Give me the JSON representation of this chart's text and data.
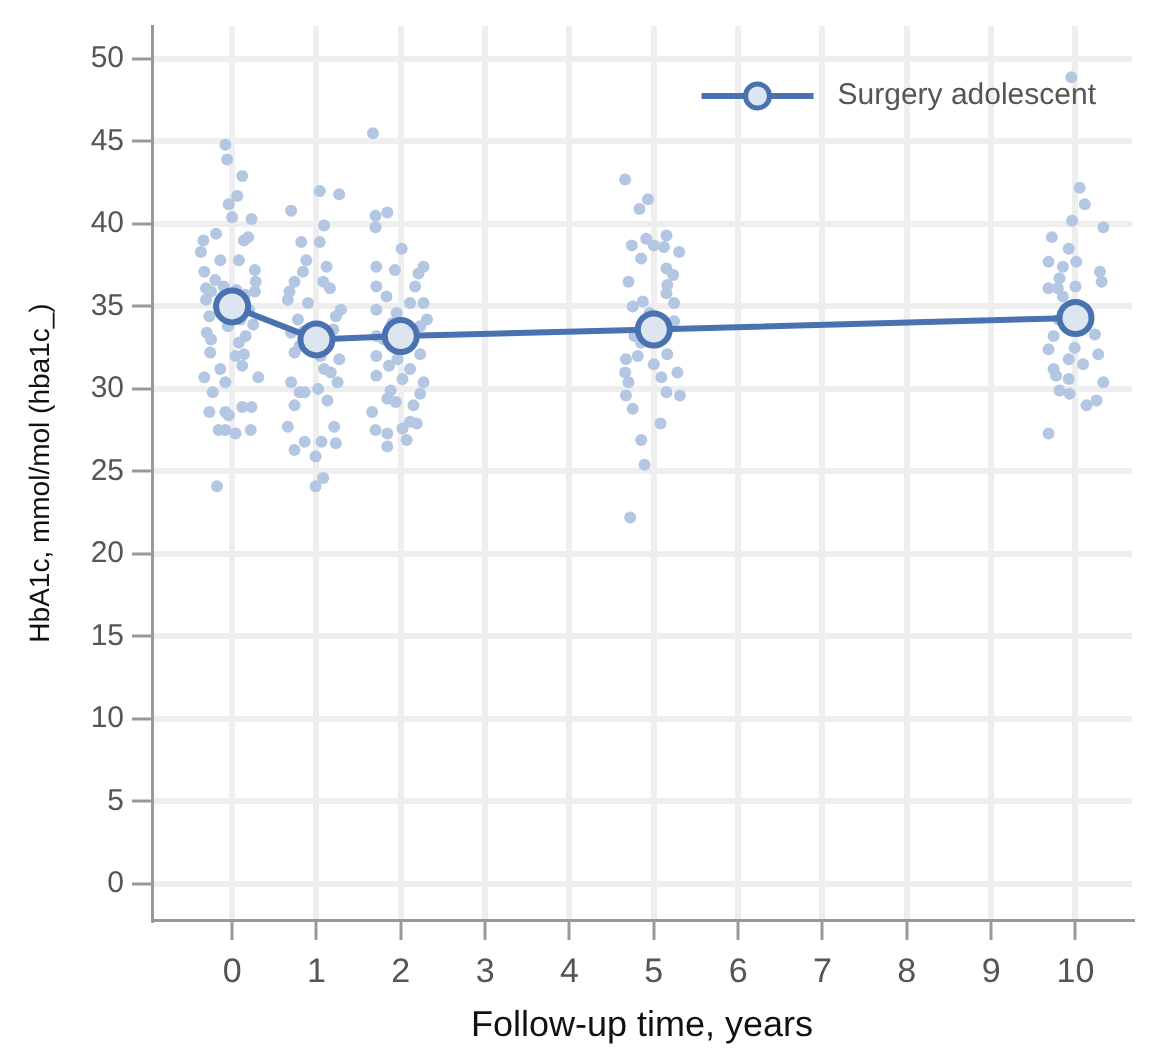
{
  "chart_data": {
    "type": "scatter",
    "xlabel": "Follow-up time, years",
    "ylabel": "HbA1c, mmol/mol (hba1c_)",
    "xlim": [
      -0.95,
      10.67
    ],
    "xticks": [
      0,
      1,
      2,
      3,
      4,
      5,
      6,
      7,
      8,
      9,
      10
    ],
    "ylim": [
      -2.2,
      52
    ],
    "yticks": [
      0,
      5,
      10,
      15,
      20,
      25,
      30,
      35,
      40,
      45,
      50
    ],
    "grid": true,
    "legend": "top right",
    "marker": "circle",
    "series": [
      {
        "type": "scatter",
        "color": "#b3c6e2",
        "x": [
          -0.08,
          -0.06,
          0.12,
          0.06,
          -0.04,
          0,
          0.23,
          -0.19,
          -0.34,
          0.14,
          0.19,
          -0.37,
          -0.14,
          0.08,
          0.27,
          -0.33,
          0.28,
          0.27,
          -0.31,
          -0.31,
          -0.27,
          -0.3,
          -0.25,
          0.16,
          -0.26,
          0.08,
          0.04,
          0.14,
          0.12,
          -0.14,
          -0.33,
          0.31,
          -0.08,
          -0.23,
          0.23,
          0.12,
          -0.27,
          -0.08,
          -0.04,
          -0.16,
          -0.08,
          0.04,
          0.22,
          -0.18,
          -0.2,
          -0.1,
          0.05,
          0.15,
          -0.25,
          0.2,
          0.1,
          -0.05,
          0.25,
          1.04,
          1.27,
          0.7,
          1.09,
          0.82,
          1.04,
          0.88,
          1.12,
          0.84,
          0.74,
          1.08,
          0.68,
          0.66,
          1.16,
          0.9,
          1.29,
          1.23,
          0.78,
          0.7,
          0.74,
          1.27,
          1.09,
          1.17,
          1.25,
          0.7,
          0.8,
          0.86,
          1.02,
          1.13,
          0.74,
          0.66,
          1.21,
          0.86,
          1.06,
          1.23,
          0.74,
          0.99,
          1.08,
          0.99,
          0.85,
          1.2,
          0.8,
          1.05,
          1.67,
          1.84,
          1.7,
          1.7,
          2.01,
          2.27,
          1.71,
          1.93,
          2.21,
          2.17,
          1.71,
          1.83,
          2.27,
          2.11,
          1.71,
          2.31,
          2.23,
          1.71,
          2.23,
          1.71,
          1.96,
          1.86,
          2.11,
          1.71,
          2.02,
          2.27,
          1.88,
          2.23,
          1.84,
          1.94,
          2.15,
          1.66,
          2.11,
          1.7,
          1.84,
          2.02,
          2.07,
          2.19,
          1.84,
          1.9,
          1.8,
          1.95,
          4.66,
          4.93,
          4.83,
          4.91,
          5.15,
          4.74,
          5,
          5.12,
          5.3,
          4.85,
          5.15,
          5.23,
          4.7,
          5.16,
          5.15,
          4.87,
          5.24,
          4.75,
          5.24,
          4.77,
          4.67,
          4.81,
          5.16,
          5,
          5.28,
          4.66,
          4.7,
          5.09,
          4.67,
          5.15,
          5.31,
          4.75,
          5.08,
          4.85,
          4.89,
          4.72,
          4.95,
          4.85,
          9.95,
          10.05,
          10.11,
          9.96,
          10.33,
          9.72,
          9.92,
          10.01,
          9.68,
          9.85,
          10.29,
          9.81,
          10.31,
          9.68,
          9.79,
          10,
          9.85,
          9.74,
          10.23,
          9.68,
          9.99,
          10.27,
          9.92,
          9.74,
          10.09,
          9.77,
          9.92,
          10.33,
          9.81,
          9.93,
          10.25,
          10.13,
          9.68,
          9.8
        ],
        "values": [
          44.8,
          43.9,
          42.9,
          41.7,
          41.2,
          40.4,
          40.3,
          39.4,
          39,
          39,
          39.2,
          38.3,
          37.8,
          37.8,
          37.2,
          37.1,
          36.5,
          35.9,
          36.1,
          35.4,
          34.4,
          33.4,
          33,
          33.2,
          32.2,
          32.8,
          32,
          32.1,
          31.4,
          31.2,
          30.7,
          30.7,
          30.4,
          29.8,
          28.9,
          28.9,
          28.6,
          28.6,
          28.4,
          27.5,
          27.5,
          27.3,
          27.5,
          24.1,
          36.6,
          36.2,
          36,
          35.7,
          35.9,
          34.8,
          34.2,
          33.8,
          33.9,
          42,
          41.8,
          40.8,
          39.9,
          38.9,
          38.9,
          37.8,
          37.4,
          37.1,
          36.5,
          36.5,
          35.9,
          35.4,
          36.1,
          35.2,
          34.8,
          34.4,
          34.2,
          33.4,
          32.2,
          31.8,
          31.2,
          31,
          30.4,
          30.4,
          29.8,
          29.8,
          30,
          29.3,
          29,
          27.7,
          27.7,
          26.8,
          26.8,
          26.7,
          26.3,
          25.9,
          24.6,
          24.1,
          33.5,
          33.6,
          32.6,
          32,
          45.5,
          40.7,
          40.5,
          39.8,
          38.5,
          37.4,
          37.4,
          37.2,
          37,
          36.2,
          36.2,
          35.6,
          35.2,
          35.2,
          34.8,
          34.2,
          33.8,
          33.2,
          32.1,
          32,
          31.8,
          31.4,
          31.2,
          30.8,
          30.6,
          30.4,
          29.9,
          29.7,
          29.4,
          29.2,
          29,
          28.6,
          28,
          27.5,
          27.3,
          27.6,
          26.9,
          27.9,
          26.5,
          34,
          33,
          34.6,
          42.7,
          41.5,
          40.9,
          39.1,
          39.3,
          38.7,
          38.7,
          38.6,
          38.3,
          37.9,
          37.3,
          36.9,
          36.5,
          36.3,
          35.8,
          35.3,
          35.2,
          35,
          34.1,
          33.2,
          31.8,
          32,
          32.1,
          31.5,
          31,
          31,
          30.4,
          30.7,
          29.6,
          29.8,
          29.6,
          28.8,
          27.9,
          26.9,
          25.4,
          22.2,
          34.6,
          32.8,
          48.9,
          42.2,
          41.2,
          40.2,
          39.8,
          39.2,
          38.5,
          37.7,
          37.7,
          37.4,
          37.1,
          36.7,
          36.5,
          36.1,
          36.1,
          36.2,
          35.6,
          33.2,
          33.3,
          32.4,
          32.5,
          32.1,
          31.8,
          31.2,
          31.5,
          30.8,
          30.6,
          30.4,
          29.9,
          29.7,
          29.3,
          29,
          27.3,
          34.2
        ]
      },
      {
        "type": "line",
        "name": "Surgery adolescent",
        "color": "#4a72b0",
        "x": [
          0,
          1,
          2,
          5,
          10
        ],
        "values": [
          35,
          33,
          33.2,
          33.6,
          34.3
        ]
      }
    ]
  }
}
